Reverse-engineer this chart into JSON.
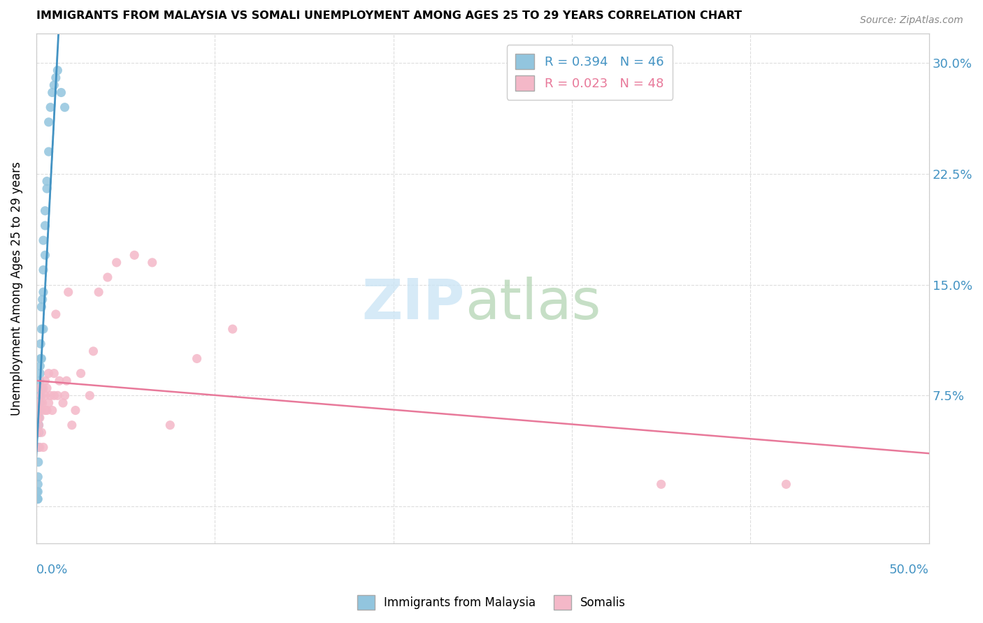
{
  "title": "IMMIGRANTS FROM MALAYSIA VS SOMALI UNEMPLOYMENT AMONG AGES 25 TO 29 YEARS CORRELATION CHART",
  "source": "Source: ZipAtlas.com",
  "ylabel": "Unemployment Among Ages 25 to 29 years",
  "yticks": [
    0.0,
    0.075,
    0.15,
    0.225,
    0.3
  ],
  "ytick_labels": [
    "",
    "7.5%",
    "15.0%",
    "22.5%",
    "30.0%"
  ],
  "xlim": [
    0.0,
    0.5
  ],
  "ylim": [
    -0.025,
    0.32
  ],
  "legend_label1": "Immigrants from Malaysia",
  "legend_label2": "Somalis",
  "malaysia_color": "#92c5de",
  "somali_color": "#f4b8c8",
  "malaysia_line_color": "#4393c3",
  "somali_line_color": "#e8799a",
  "malaysia_x": [
    0.0005,
    0.0005,
    0.0005,
    0.0008,
    0.001,
    0.001,
    0.001,
    0.001,
    0.0012,
    0.0012,
    0.0015,
    0.0015,
    0.0015,
    0.0018,
    0.002,
    0.002,
    0.002,
    0.002,
    0.002,
    0.0022,
    0.0022,
    0.0025,
    0.0025,
    0.003,
    0.003,
    0.003,
    0.003,
    0.0035,
    0.004,
    0.004,
    0.004,
    0.004,
    0.005,
    0.005,
    0.005,
    0.006,
    0.006,
    0.007,
    0.007,
    0.008,
    0.009,
    0.01,
    0.011,
    0.012,
    0.014,
    0.016
  ],
  "malaysia_y": [
    0.005,
    0.01,
    0.005,
    0.005,
    0.005,
    0.01,
    0.015,
    0.02,
    0.03,
    0.04,
    0.05,
    0.055,
    0.06,
    0.065,
    0.07,
    0.075,
    0.075,
    0.08,
    0.085,
    0.09,
    0.095,
    0.1,
    0.11,
    0.08,
    0.1,
    0.12,
    0.135,
    0.14,
    0.12,
    0.145,
    0.16,
    0.18,
    0.17,
    0.19,
    0.2,
    0.215,
    0.22,
    0.24,
    0.26,
    0.27,
    0.28,
    0.285,
    0.29,
    0.295,
    0.28,
    0.27
  ],
  "somali_x": [
    0.0005,
    0.001,
    0.001,
    0.0015,
    0.0015,
    0.002,
    0.002,
    0.002,
    0.0025,
    0.003,
    0.003,
    0.003,
    0.0035,
    0.004,
    0.004,
    0.005,
    0.005,
    0.005,
    0.006,
    0.006,
    0.007,
    0.007,
    0.008,
    0.009,
    0.01,
    0.01,
    0.011,
    0.012,
    0.013,
    0.015,
    0.016,
    0.017,
    0.018,
    0.02,
    0.022,
    0.025,
    0.03,
    0.032,
    0.035,
    0.04,
    0.045,
    0.055,
    0.065,
    0.075,
    0.09,
    0.11,
    0.35,
    0.42
  ],
  "somali_y": [
    0.06,
    0.05,
    0.07,
    0.055,
    0.065,
    0.04,
    0.06,
    0.08,
    0.07,
    0.05,
    0.065,
    0.075,
    0.07,
    0.04,
    0.08,
    0.065,
    0.075,
    0.085,
    0.065,
    0.08,
    0.07,
    0.09,
    0.075,
    0.065,
    0.075,
    0.09,
    0.13,
    0.075,
    0.085,
    0.07,
    0.075,
    0.085,
    0.145,
    0.055,
    0.065,
    0.09,
    0.075,
    0.105,
    0.145,
    0.155,
    0.165,
    0.17,
    0.165,
    0.055,
    0.1,
    0.12,
    0.015,
    0.015
  ]
}
